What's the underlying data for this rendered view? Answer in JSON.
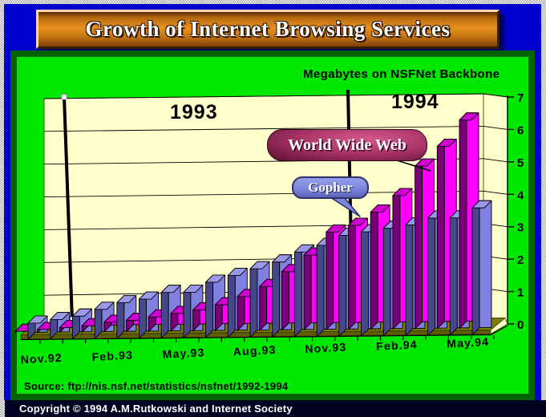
{
  "page": {
    "title_banner": "Growth of Internet Browsing Services",
    "source_line": "Source: ftp://nis.nsf.net/statistics/nsfnet/1992-1994",
    "copyright_line": "Copyright © 1994 A.M.Rutkowski and Internet Society"
  },
  "chart_data": {
    "type": "bar",
    "title": "Megabytes on NSFNet Backbone",
    "x": [
      "Nov.92",
      "Dec.92",
      "Jan.93",
      "Feb.93",
      "Mar.93",
      "Apr.93",
      "May.93",
      "Jun.93",
      "Jul.93",
      "Aug.93",
      "Sep.93",
      "Oct.93",
      "Nov.93",
      "Dec.93",
      "Jan.94",
      "Feb.94",
      "Mar.94",
      "Apr.94",
      "May.94",
      "Jun.94",
      "Jul.94"
    ],
    "x_tick_labels": [
      "Nov.92",
      "Feb.93",
      "May.93",
      "Aug.93",
      "Nov.93",
      "Feb.94",
      "May.94"
    ],
    "x_tick_month_indexes": [
      0,
      3,
      6,
      9,
      12,
      15,
      18
    ],
    "year_labels": [
      "1993",
      "1994"
    ],
    "year_divider_months": [
      "Dec.92|Jan.93",
      "Dec.93|Jan.94"
    ],
    "ylim": [
      0,
      7
    ],
    "y_ticks": [
      0,
      1,
      2,
      3,
      4,
      5,
      6,
      7
    ],
    "grid": true,
    "legend_position": "floating-callouts",
    "series": [
      {
        "name": "World Wide Web",
        "row": "back",
        "values": [
          0.05,
          0.1,
          0.15,
          0.2,
          0.3,
          0.35,
          0.45,
          0.55,
          0.65,
          0.8,
          1.05,
          1.35,
          1.8,
          2.3,
          3.0,
          3.2,
          3.6,
          4.1,
          5.0,
          5.6,
          6.4
        ],
        "face_color": "#FF00FF",
        "side_color": "#7A007A",
        "top_color": "#D000D0"
      },
      {
        "name": "Gopher",
        "row": "front",
        "values": [
          0.5,
          0.6,
          0.7,
          0.9,
          1.1,
          1.2,
          1.4,
          1.4,
          1.7,
          1.9,
          2.1,
          2.3,
          2.6,
          2.8,
          3.1,
          3.2,
          3.3,
          3.4,
          3.6,
          3.6,
          3.9
        ],
        "face_color": "#8080E0",
        "side_color": "#47478C",
        "top_color": "#9999E8"
      }
    ]
  },
  "colors": {
    "frame_blue": "#0000CE",
    "panel_green": "#00E800",
    "panel_border_green": "#046404",
    "wall_cream": "#FFFFCC",
    "floor_olive": "#7E7E00",
    "floor_front_olive": "#5E5E00",
    "copyright_bar": "#000020",
    "banner_orange": "#E89020"
  }
}
